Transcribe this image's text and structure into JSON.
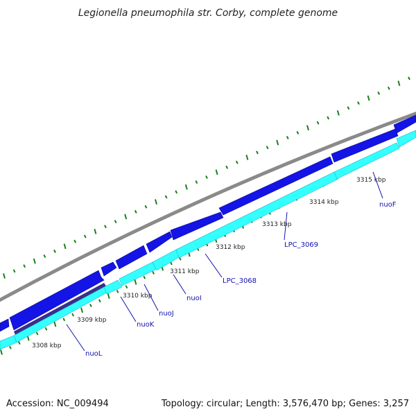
{
  "title": "Legionella pneumophila str. Corby, complete genome",
  "footer": {
    "accession": "Accession: NC_009494",
    "summary": "Topology: circular; Length: 3,576,470 bp; Genes: 3,257"
  },
  "colors": {
    "backbone": "#8a8a8a",
    "forward_gene": "#1414e6",
    "reverse_gene": "#33ffff",
    "dark_gene": "#3a2e8a",
    "gc_skew": "#1a7f1a",
    "label": "#1010b0"
  },
  "scale_ticks": [
    {
      "label": "3308 kbp"
    },
    {
      "label": "3309 kbp"
    },
    {
      "label": "3310 kbp"
    },
    {
      "label": "3311 kbp"
    },
    {
      "label": "3312 kbp"
    },
    {
      "label": "3313 kbp"
    },
    {
      "label": "3314 kbp"
    },
    {
      "label": "3315 kbp"
    }
  ],
  "gene_labels": [
    {
      "label": "nuoL"
    },
    {
      "label": "nuoK"
    },
    {
      "label": "nuoJ"
    },
    {
      "label": "nuoI"
    },
    {
      "label": "LPC_3068"
    },
    {
      "label": "LPC_3069"
    },
    {
      "label": "nuoF"
    }
  ]
}
